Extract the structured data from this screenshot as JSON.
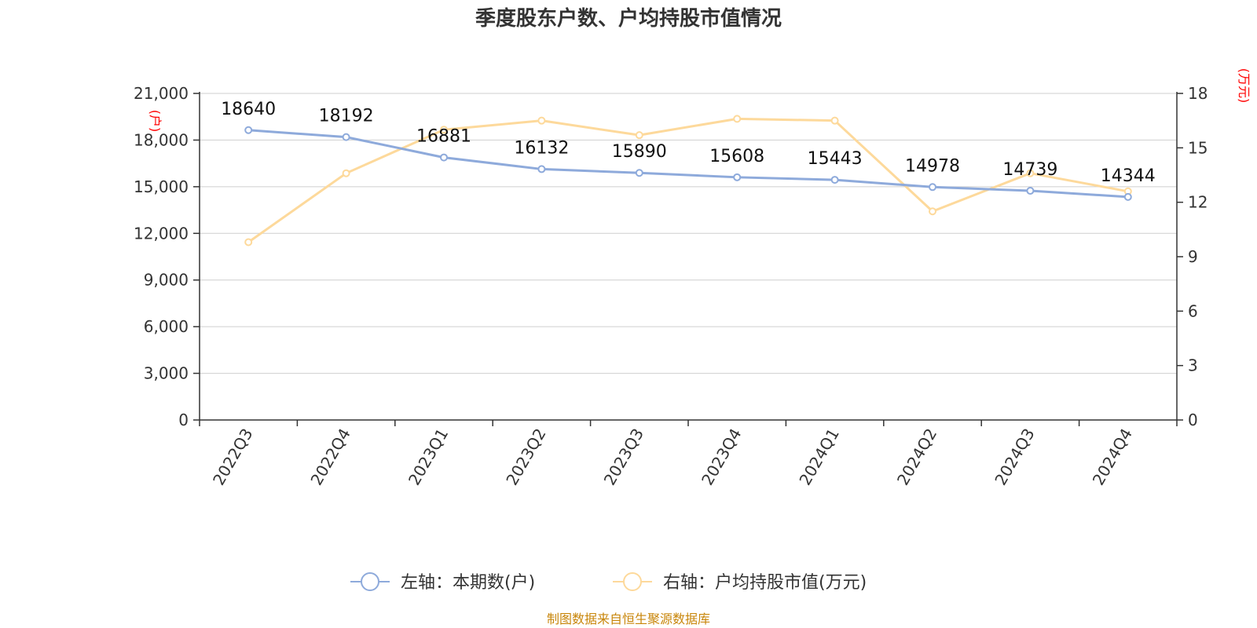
{
  "chart_data": {
    "type": "line",
    "title": "季度股东户数、户均持股市值情况",
    "categories": [
      "2022Q3",
      "2022Q4",
      "2023Q1",
      "2023Q2",
      "2023Q3",
      "2023Q4",
      "2024Q1",
      "2024Q2",
      "2024Q3",
      "2024Q4"
    ],
    "series": [
      {
        "name": "左轴：本期数(户)",
        "axis": "left",
        "color": "#8eaadb",
        "values": [
          18640,
          18192,
          16881,
          16132,
          15890,
          15608,
          15443,
          14978,
          14739,
          14344
        ],
        "labels": [
          "18640",
          "18192",
          "16881",
          "16132",
          "15890",
          "15608",
          "15443",
          "14978",
          "14739",
          "14344"
        ]
      },
      {
        "name": "右轴：户均持股市值(万元)",
        "axis": "right",
        "color": "#fdd99b",
        "values": [
          9.8,
          13.6,
          16.0,
          16.5,
          15.7,
          16.6,
          16.5,
          11.5,
          13.6,
          12.6
        ]
      }
    ],
    "y_left": {
      "unit": "(户)",
      "range": [
        0,
        21000
      ],
      "ticks": [
        "0",
        "3,000",
        "6,000",
        "9,000",
        "12,000",
        "15,000",
        "18,000",
        "21,000"
      ],
      "tick_values": [
        0,
        3000,
        6000,
        9000,
        12000,
        15000,
        18000,
        21000
      ]
    },
    "y_right": {
      "unit": "(万元)",
      "range": [
        0,
        18
      ],
      "ticks": [
        "0",
        "3",
        "6",
        "9",
        "12",
        "15",
        "18"
      ],
      "tick_values": [
        0,
        3,
        6,
        9,
        12,
        15,
        18
      ]
    },
    "grid": true,
    "legend_position": "bottom-center",
    "source": "制图数据来自恒生聚源数据库"
  }
}
